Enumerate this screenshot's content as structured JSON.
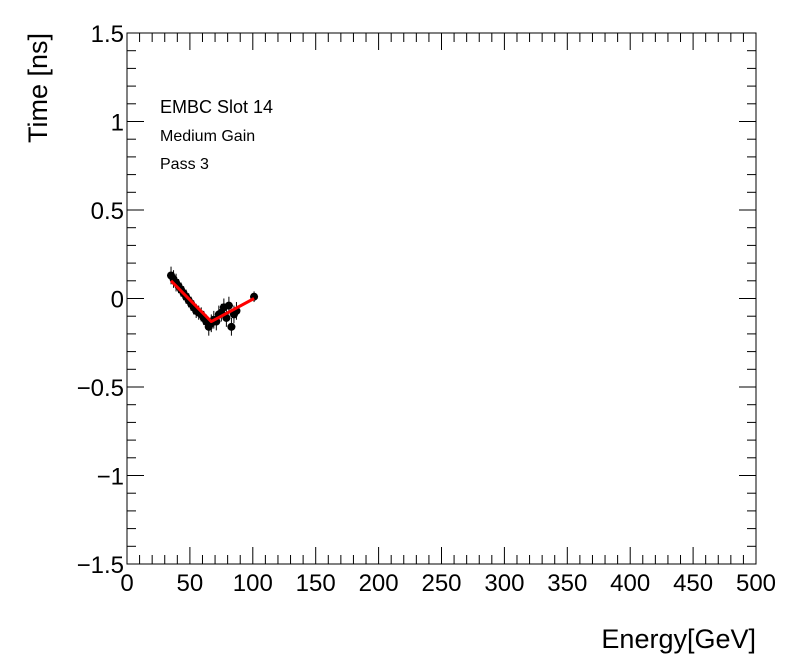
{
  "chart_data": {
    "type": "scatter",
    "title": "",
    "xlabel": "Energy[GeV]",
    "ylabel": "Time [ns]",
    "xlim": [
      0,
      500
    ],
    "ylim": [
      -1.5,
      1.5
    ],
    "x_major_ticks": [
      0,
      50,
      100,
      150,
      200,
      250,
      300,
      350,
      400,
      450,
      500
    ],
    "x_tick_labels": [
      "0",
      "50",
      "100",
      "150",
      "200",
      "250",
      "300",
      "350",
      "400",
      "450",
      "500"
    ],
    "x_minor_step": 10,
    "y_major_ticks": [
      -1.5,
      -1,
      -0.5,
      0,
      0.5,
      1,
      1.5
    ],
    "y_tick_labels": [
      "−1.5",
      "−1",
      "−0.5",
      "0",
      "0.5",
      "1",
      "1.5"
    ],
    "y_minor_step": 0.1,
    "grid": false,
    "annotations": [
      "EMBC Slot 14",
      "Medium Gain",
      "Pass 3"
    ],
    "series": [
      {
        "kind": "points_with_errors",
        "marker_color": "#000000",
        "points": [
          {
            "x": 35,
            "y": 0.13,
            "err": 0.05
          },
          {
            "x": 37,
            "y": 0.11,
            "err": 0.05
          },
          {
            "x": 39,
            "y": 0.09,
            "err": 0.05
          },
          {
            "x": 41,
            "y": 0.07,
            "err": 0.04
          },
          {
            "x": 43,
            "y": 0.05,
            "err": 0.04
          },
          {
            "x": 45,
            "y": 0.03,
            "err": 0.04
          },
          {
            "x": 47,
            "y": 0.01,
            "err": 0.04
          },
          {
            "x": 49,
            "y": -0.01,
            "err": 0.04
          },
          {
            "x": 51,
            "y": -0.03,
            "err": 0.04
          },
          {
            "x": 53,
            "y": -0.05,
            "err": 0.04
          },
          {
            "x": 55,
            "y": -0.07,
            "err": 0.04
          },
          {
            "x": 57,
            "y": -0.08,
            "err": 0.04
          },
          {
            "x": 59,
            "y": -0.09,
            "err": 0.04
          },
          {
            "x": 61,
            "y": -0.11,
            "err": 0.04
          },
          {
            "x": 63,
            "y": -0.13,
            "err": 0.04
          },
          {
            "x": 65,
            "y": -0.16,
            "err": 0.05
          },
          {
            "x": 67,
            "y": -0.14,
            "err": 0.05
          },
          {
            "x": 69,
            "y": -0.12,
            "err": 0.05
          },
          {
            "x": 71,
            "y": -0.13,
            "err": 0.05
          },
          {
            "x": 73,
            "y": -0.09,
            "err": 0.05
          },
          {
            "x": 75,
            "y": -0.08,
            "err": 0.05
          },
          {
            "x": 77,
            "y": -0.05,
            "err": 0.05
          },
          {
            "x": 79,
            "y": -0.11,
            "err": 0.05
          },
          {
            "x": 81,
            "y": -0.04,
            "err": 0.05
          },
          {
            "x": 83,
            "y": -0.16,
            "err": 0.05
          },
          {
            "x": 85,
            "y": -0.09,
            "err": 0.05
          },
          {
            "x": 87,
            "y": -0.07,
            "err": 0.05
          },
          {
            "x": 101,
            "y": 0.01,
            "err": 0.03
          }
        ]
      },
      {
        "kind": "fit_line",
        "color": "#ff0000",
        "points": [
          [
            35,
            0.1
          ],
          [
            67,
            -0.13
          ],
          [
            101,
            0.0
          ]
        ]
      }
    ]
  }
}
